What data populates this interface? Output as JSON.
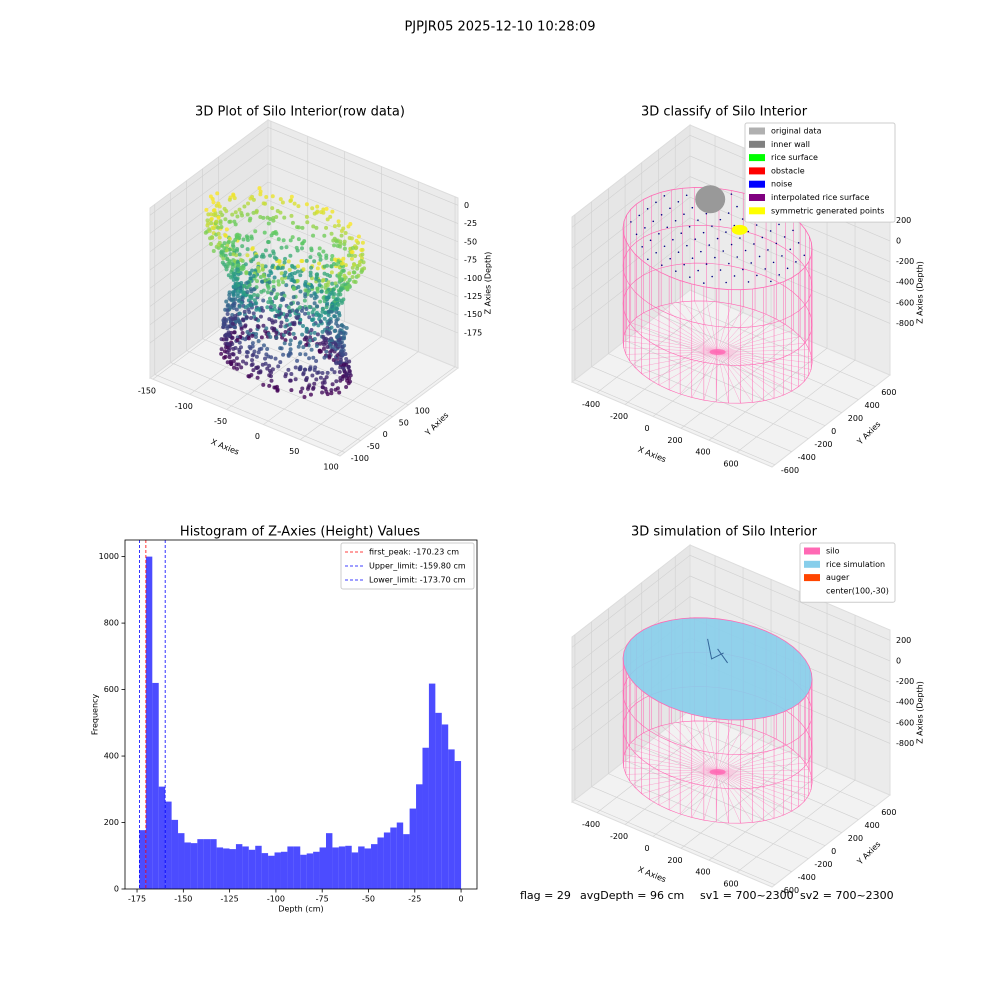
{
  "title": "PJPJR05 2025-12-10 10:28:09",
  "footer": [
    "flag = 29",
    "avgDepth = 96 cm",
    "sv1 = 700~2300",
    "sv2 = 700~2300"
  ],
  "chart_data": [
    {
      "type": "scatter3d",
      "title": "3D Plot of Silo Interior(row data)",
      "xlabel": "X Axies",
      "ylabel": "Y Axies",
      "zlabel": "Z Axies (Depth)",
      "xlim": [
        -154,
        104
      ],
      "xticks": [
        -150,
        -100,
        -50,
        0,
        50,
        100
      ],
      "ylim": [
        -115,
        255
      ],
      "yticks": [
        -100,
        -50,
        0,
        50,
        100
      ],
      "zlim": [
        -223,
        10
      ],
      "zticks": [
        0,
        -25,
        -50,
        -75,
        -100,
        -125,
        -150,
        -175
      ]
    },
    {
      "type": "classify3d",
      "title": "3D classify of Silo Interior",
      "xlabel": "X Axies",
      "ylabel": "Y Axies",
      "zlabel": "Z Axies (Depth)",
      "xlim": [
        -579,
        850
      ],
      "xticks": [
        -400,
        -200,
        0,
        200,
        400,
        600
      ],
      "ylim": [
        -635,
        777
      ],
      "yticks": [
        -600,
        -400,
        -200,
        0,
        200,
        400,
        600
      ],
      "zlim": [
        -1300,
        300
      ],
      "zticks": [
        200,
        0,
        -200,
        -400,
        -600,
        -800
      ],
      "legend": [
        {
          "name": "original data",
          "color": "#b0b0b0"
        },
        {
          "name": "inner wall",
          "color": "#808080"
        },
        {
          "name": "rice surface",
          "color": "#00ff00"
        },
        {
          "name": "obstacle",
          "color": "#ff0000"
        },
        {
          "name": "noise",
          "color": "#0000ff"
        },
        {
          "name": "interpolated rice surface",
          "color": "#800080"
        },
        {
          "name": "symmetric generated points",
          "color": "#ffff00"
        }
      ]
    },
    {
      "type": "histogram",
      "title": "Histogram of Z-Axies (Height) Values",
      "xlabel": "Depth (cm)",
      "ylabel": "Frequency",
      "color": "#0000ff",
      "bins": [
        -173.7,
        -170.226,
        -166.752,
        -163.278,
        -159.804,
        -156.33,
        -152.856,
        -149.382,
        -145.908,
        -142.434,
        -138.96,
        -135.486,
        -132.012,
        -128.538,
        -125.064,
        -121.59,
        -118.116,
        -114.642,
        -111.168,
        -107.694,
        -104.22,
        -100.746,
        -97.272,
        -93.798,
        -90.324,
        -86.85,
        -83.376,
        -79.902,
        -76.428,
        -72.954,
        -69.48,
        -66.006,
        -62.532,
        -59.058,
        -55.584,
        -52.11,
        -48.636,
        -45.162,
        -41.688,
        -38.214,
        -34.74,
        -31.266,
        -27.792,
        -24.318,
        -20.844,
        -17.37,
        -13.896,
        -10.422,
        -6.948,
        -3.474,
        0
      ],
      "values": [
        177,
        1000,
        620,
        308,
        263,
        208,
        168,
        140,
        138,
        150,
        150,
        150,
        125,
        122,
        120,
        135,
        128,
        118,
        130,
        108,
        100,
        110,
        112,
        128,
        128,
        103,
        107,
        112,
        125,
        168,
        125,
        128,
        130,
        110,
        128,
        122,
        135,
        155,
        170,
        185,
        200,
        165,
        242,
        315,
        425,
        618,
        530,
        495,
        420,
        385
      ],
      "vlines": [
        {
          "label": "first_peak: -170.23 cm",
          "value": -170.23,
          "color": "#ff0000"
        },
        {
          "label": "Upper_limit: -159.80 cm",
          "value": -159.8,
          "color": "#0000ff"
        },
        {
          "label": "Lower_limit: -173.70 cm",
          "value": -173.7,
          "color": "#0000ff"
        }
      ],
      "xlim": [
        -181.5,
        8.6
      ],
      "xticks": [
        -175,
        -150,
        -125,
        -100,
        -75,
        -50,
        -25,
        0
      ],
      "ylim": [
        0,
        1050
      ],
      "yticks": [
        0,
        200,
        400,
        600,
        800,
        1000
      ]
    },
    {
      "type": "simulation3d",
      "title": "3D simulation of Silo Interior",
      "xlabel": "X Axies",
      "ylabel": "Y Axies",
      "zlabel": "Z Axies (Depth)",
      "xlim": [
        -579,
        850
      ],
      "xticks": [
        -400,
        -200,
        0,
        200,
        400,
        600
      ],
      "ylim": [
        -635,
        777
      ],
      "yticks": [
        -600,
        -400,
        -200,
        0,
        200,
        400,
        600
      ],
      "zlim": [
        -1300,
        300
      ],
      "zticks": [
        200,
        0,
        -200,
        -400,
        -600,
        -800
      ],
      "legend": [
        {
          "name": "silo",
          "color": "#ff69b4"
        },
        {
          "name": "rice simulation",
          "color": "#87ceeb"
        },
        {
          "name": "auger",
          "color": "#ff4500"
        },
        {
          "name": "center(100,-30)",
          "color": "#ffffff"
        }
      ]
    }
  ]
}
